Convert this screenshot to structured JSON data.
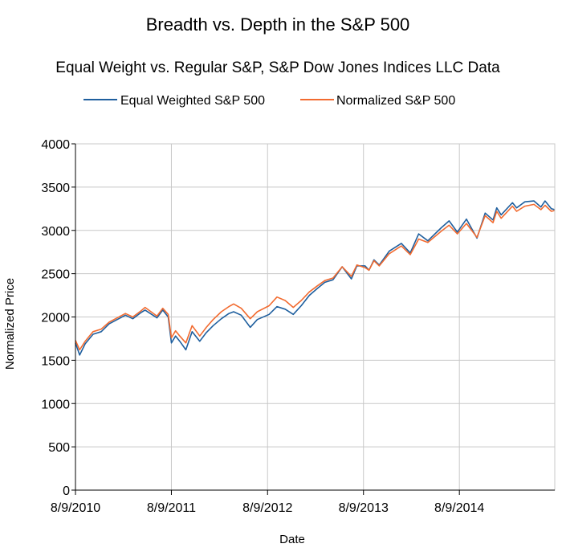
{
  "colors": {
    "equal_weight": "#1f5f9e",
    "normalized": "#f26b30",
    "grid": "#c8c8c8",
    "axis": "#000000"
  },
  "chart_data": {
    "type": "line",
    "title": "Breadth vs. Depth in the S&P 500",
    "subtitle": "Equal Weight vs. Regular S&P, S&P Dow Jones Indices LLC Data",
    "xlabel": "Date",
    "ylabel": "Normalized Price",
    "ylim": [
      0,
      4000
    ],
    "yticks": [
      "0",
      "500",
      "1000",
      "1500",
      "2000",
      "2500",
      "3000",
      "3500",
      "4000"
    ],
    "xlim": [
      "2010-08-09",
      "2015-08-07"
    ],
    "xticks": [
      "8/9/2010",
      "8/9/2011",
      "8/9/2012",
      "8/9/2013",
      "8/9/2014"
    ],
    "grid": true,
    "legend": "top",
    "series": [
      {
        "name": "Equal Weighted S&P 500",
        "color": "#1f5f9e",
        "points": [
          [
            "2010-08-09",
            1700
          ],
          [
            "2010-08-25",
            1560
          ],
          [
            "2010-09-15",
            1690
          ],
          [
            "2010-10-15",
            1800
          ],
          [
            "2010-11-15",
            1830
          ],
          [
            "2010-12-15",
            1920
          ],
          [
            "2011-01-15",
            1970
          ],
          [
            "2011-02-15",
            2020
          ],
          [
            "2011-03-15",
            1980
          ],
          [
            "2011-04-15",
            2050
          ],
          [
            "2011-05-01",
            2080
          ],
          [
            "2011-06-15",
            1990
          ],
          [
            "2011-07-07",
            2080
          ],
          [
            "2011-07-28",
            2000
          ],
          [
            "2011-08-09",
            1700
          ],
          [
            "2011-08-25",
            1780
          ],
          [
            "2011-09-10",
            1720
          ],
          [
            "2011-10-03",
            1620
          ],
          [
            "2011-10-27",
            1830
          ],
          [
            "2011-11-25",
            1720
          ],
          [
            "2011-12-20",
            1820
          ],
          [
            "2012-01-15",
            1900
          ],
          [
            "2012-02-15",
            1980
          ],
          [
            "2012-03-15",
            2040
          ],
          [
            "2012-04-02",
            2060
          ],
          [
            "2012-05-01",
            2020
          ],
          [
            "2012-06-04",
            1880
          ],
          [
            "2012-07-01",
            1970
          ],
          [
            "2012-08-15",
            2030
          ],
          [
            "2012-09-14",
            2120
          ],
          [
            "2012-10-15",
            2090
          ],
          [
            "2012-11-15",
            2030
          ],
          [
            "2012-12-15",
            2130
          ],
          [
            "2013-01-15",
            2250
          ],
          [
            "2013-02-15",
            2330
          ],
          [
            "2013-03-15",
            2400
          ],
          [
            "2013-04-15",
            2430
          ],
          [
            "2013-05-20",
            2580
          ],
          [
            "2013-06-24",
            2440
          ],
          [
            "2013-07-15",
            2590
          ],
          [
            "2013-08-15",
            2590
          ],
          [
            "2013-08-30",
            2540
          ],
          [
            "2013-09-18",
            2660
          ],
          [
            "2013-10-08",
            2600
          ],
          [
            "2013-11-15",
            2760
          ],
          [
            "2013-12-31",
            2850
          ],
          [
            "2014-02-03",
            2740
          ],
          [
            "2014-03-07",
            2960
          ],
          [
            "2014-04-11",
            2880
          ],
          [
            "2014-06-01",
            3030
          ],
          [
            "2014-07-01",
            3110
          ],
          [
            "2014-08-01",
            2980
          ],
          [
            "2014-09-05",
            3130
          ],
          [
            "2014-10-15",
            2910
          ],
          [
            "2014-11-15",
            3200
          ],
          [
            "2014-12-15",
            3120
          ],
          [
            "2014-12-29",
            3260
          ],
          [
            "2015-01-15",
            3180
          ],
          [
            "2015-02-27",
            3320
          ],
          [
            "2015-03-15",
            3260
          ],
          [
            "2015-04-15",
            3330
          ],
          [
            "2015-05-20",
            3340
          ],
          [
            "2015-06-15",
            3270
          ],
          [
            "2015-07-01",
            3340
          ],
          [
            "2015-07-25",
            3250
          ],
          [
            "2015-08-07",
            3240
          ]
        ]
      },
      {
        "name": "Normalized S&P 500",
        "color": "#f26b30",
        "points": [
          [
            "2010-08-09",
            1730
          ],
          [
            "2010-08-25",
            1620
          ],
          [
            "2010-09-15",
            1720
          ],
          [
            "2010-10-15",
            1830
          ],
          [
            "2010-11-15",
            1860
          ],
          [
            "2010-12-15",
            1940
          ],
          [
            "2011-01-15",
            1990
          ],
          [
            "2011-02-15",
            2040
          ],
          [
            "2011-03-15",
            2000
          ],
          [
            "2011-04-15",
            2070
          ],
          [
            "2011-05-01",
            2110
          ],
          [
            "2011-06-15",
            2010
          ],
          [
            "2011-07-07",
            2100
          ],
          [
            "2011-07-28",
            2030
          ],
          [
            "2011-08-09",
            1760
          ],
          [
            "2011-08-25",
            1840
          ],
          [
            "2011-09-10",
            1780
          ],
          [
            "2011-10-03",
            1700
          ],
          [
            "2011-10-27",
            1900
          ],
          [
            "2011-11-25",
            1780
          ],
          [
            "2011-12-20",
            1880
          ],
          [
            "2012-01-15",
            1970
          ],
          [
            "2012-02-15",
            2060
          ],
          [
            "2012-03-15",
            2120
          ],
          [
            "2012-04-02",
            2150
          ],
          [
            "2012-05-01",
            2100
          ],
          [
            "2012-06-04",
            1980
          ],
          [
            "2012-07-01",
            2060
          ],
          [
            "2012-08-15",
            2130
          ],
          [
            "2012-09-14",
            2230
          ],
          [
            "2012-10-15",
            2190
          ],
          [
            "2012-11-15",
            2110
          ],
          [
            "2012-12-15",
            2190
          ],
          [
            "2013-01-15",
            2290
          ],
          [
            "2013-02-15",
            2360
          ],
          [
            "2013-03-15",
            2420
          ],
          [
            "2013-04-15",
            2450
          ],
          [
            "2013-05-20",
            2580
          ],
          [
            "2013-06-24",
            2470
          ],
          [
            "2013-07-15",
            2600
          ],
          [
            "2013-08-15",
            2570
          ],
          [
            "2013-08-30",
            2540
          ],
          [
            "2013-09-18",
            2650
          ],
          [
            "2013-10-08",
            2590
          ],
          [
            "2013-11-15",
            2730
          ],
          [
            "2013-12-31",
            2820
          ],
          [
            "2014-02-03",
            2720
          ],
          [
            "2014-03-07",
            2900
          ],
          [
            "2014-04-11",
            2860
          ],
          [
            "2014-06-01",
            2990
          ],
          [
            "2014-07-01",
            3060
          ],
          [
            "2014-08-01",
            2960
          ],
          [
            "2014-09-05",
            3080
          ],
          [
            "2014-10-15",
            2920
          ],
          [
            "2014-11-15",
            3170
          ],
          [
            "2014-12-15",
            3090
          ],
          [
            "2014-12-29",
            3220
          ],
          [
            "2015-01-15",
            3140
          ],
          [
            "2015-02-27",
            3280
          ],
          [
            "2015-03-15",
            3220
          ],
          [
            "2015-04-15",
            3280
          ],
          [
            "2015-05-20",
            3300
          ],
          [
            "2015-06-15",
            3240
          ],
          [
            "2015-07-01",
            3290
          ],
          [
            "2015-07-25",
            3220
          ],
          [
            "2015-08-07",
            3230
          ]
        ]
      }
    ]
  }
}
